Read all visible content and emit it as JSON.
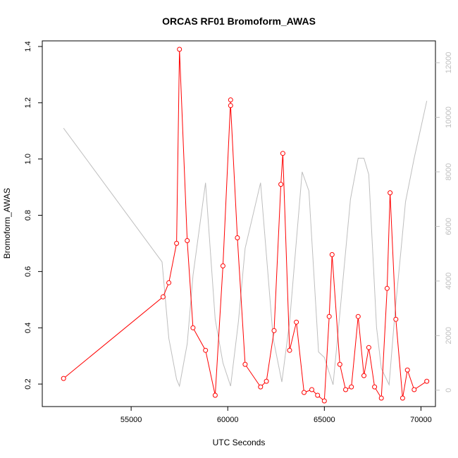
{
  "chart_data": {
    "type": "line",
    "title": "ORCAS RF01 Bromoform_AWAS",
    "xlabel": "UTC Seconds",
    "ylabel": "Bromoform_AWAS",
    "xlim": [
      50400,
      70750
    ],
    "ylim": [
      0.12,
      1.42
    ],
    "y2lim": [
      -600,
      12800
    ],
    "x_ticks": [
      55000,
      60000,
      65000,
      70000
    ],
    "x_tick_labels": [
      "55000",
      "60000",
      "65000",
      "70000"
    ],
    "y_ticks": [
      0.2,
      0.4,
      0.6,
      0.8,
      1.0,
      1.2,
      1.4
    ],
    "y_tick_labels": [
      "0.2",
      "0.4",
      "0.6",
      "0.8",
      "1.0",
      "1.2",
      "1.4"
    ],
    "y2_ticks": [
      0,
      2000,
      4000,
      6000,
      8000,
      10000,
      12000
    ],
    "y2_tick_labels": [
      "0",
      "2000",
      "4000",
      "6000",
      "8000",
      "10000",
      "12000"
    ],
    "grid": false,
    "series": [
      {
        "color": "#ff0000",
        "axis": "left",
        "marker": "circle-open",
        "x": [
          51500,
          56650,
          56950,
          57350,
          57500,
          57900,
          58200,
          58850,
          59350,
          59750,
          60150,
          60150,
          60500,
          60900,
          61700,
          62000,
          62400,
          62750,
          62850,
          63200,
          63550,
          63950,
          64350,
          64650,
          65000,
          65250,
          65400,
          65800,
          66100,
          66400,
          66750,
          67050,
          67300,
          67600,
          67950,
          68250,
          68400,
          68700,
          69050,
          69300,
          69650,
          70300
        ],
        "values": [
          0.22,
          0.51,
          0.56,
          0.7,
          1.39,
          0.71,
          0.4,
          0.32,
          0.16,
          0.62,
          1.21,
          1.19,
          0.72,
          0.27,
          0.19,
          0.21,
          0.39,
          0.91,
          1.02,
          0.32,
          0.42,
          0.17,
          0.18,
          0.16,
          0.14,
          0.44,
          0.66,
          0.27,
          0.18,
          0.19,
          0.44,
          0.23,
          0.33,
          0.19,
          0.15,
          0.54,
          0.88,
          0.43,
          0.15,
          0.25,
          0.18,
          0.21
        ]
      },
      {
        "color": "#bebebe",
        "axis": "right",
        "marker": "none",
        "x": [
          51500,
          56600,
          56950,
          57350,
          57500,
          57900,
          58200,
          58850,
          59350,
          59750,
          60150,
          60550,
          60900,
          61700,
          62350,
          62800,
          63200,
          63850,
          64200,
          64700,
          65000,
          65450,
          65800,
          66350,
          66750,
          67050,
          67300,
          67700,
          67950,
          68350,
          68650,
          68950,
          69200,
          69650,
          70300
        ],
        "values": [
          9600,
          4700,
          1900,
          400,
          150,
          1700,
          4200,
          7600,
          2600,
          1000,
          150,
          2500,
          5200,
          7600,
          1900,
          300,
          2500,
          8000,
          7300,
          1400,
          1200,
          200,
          2800,
          7000,
          8500,
          8500,
          7900,
          2300,
          800,
          200,
          2800,
          5000,
          6900,
          8500,
          10600
        ]
      }
    ]
  }
}
